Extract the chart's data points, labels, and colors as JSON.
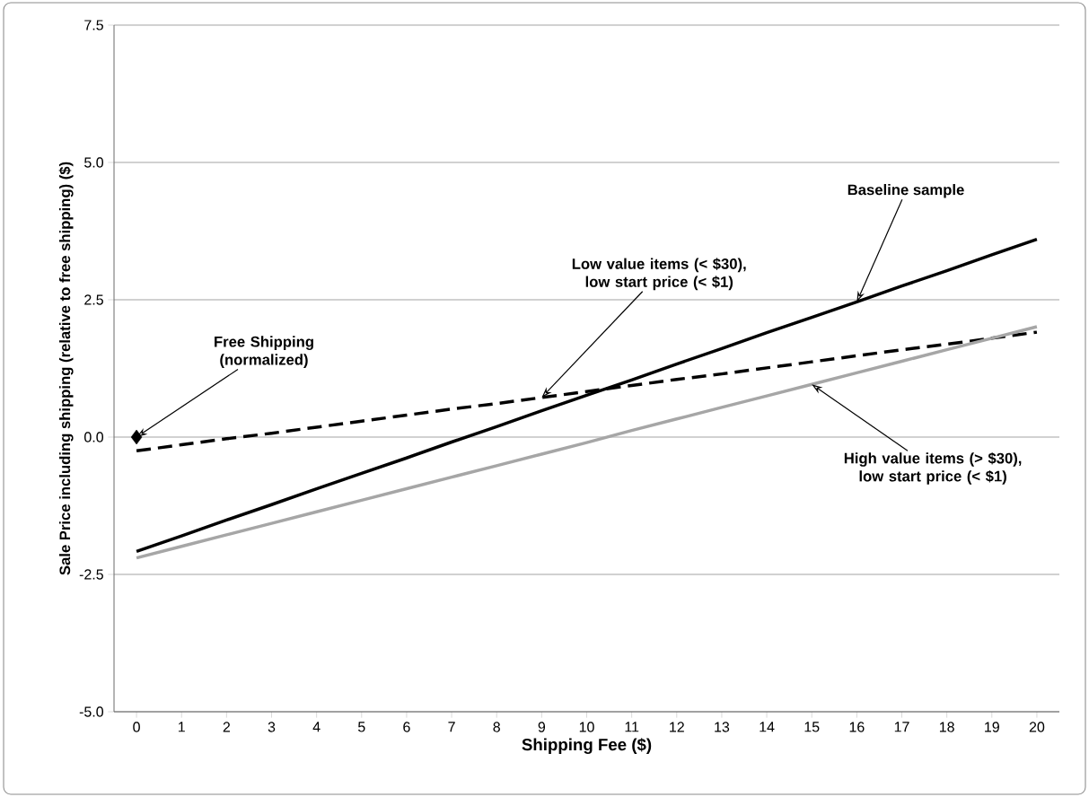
{
  "chart_data": {
    "type": "line",
    "xlabel": "Shipping Fee ($)",
    "ylabel": "Sale Price including shipping (relative to free shipping) ($)",
    "categories": [
      "0",
      "1",
      "2",
      "3",
      "4",
      "5",
      "6",
      "7",
      "8",
      "9",
      "10",
      "11",
      "12",
      "13",
      "14",
      "15",
      "16",
      "17",
      "18",
      "19",
      "20"
    ],
    "series": [
      {
        "color": "#000000",
        "values": [
          -2.08,
          -1.8,
          -1.51,
          -1.23,
          -0.94,
          -0.66,
          -0.38,
          -0.09,
          0.19,
          0.48,
          0.76,
          1.04,
          1.33,
          1.61,
          1.9,
          2.18,
          2.46,
          2.75,
          3.03,
          3.32,
          3.6
        ]
      },
      {
        "color": "#000000",
        "line_style": "dashed",
        "values": [
          -0.25,
          -0.14,
          -0.03,
          0.07,
          0.18,
          0.29,
          0.4,
          0.51,
          0.61,
          0.72,
          0.83,
          0.94,
          1.05,
          1.15,
          1.26,
          1.37,
          1.48,
          1.59,
          1.69,
          1.8,
          1.91
        ]
      },
      {
        "color": "#a6a6a6",
        "values": [
          -2.2,
          -1.99,
          -1.78,
          -1.57,
          -1.36,
          -1.15,
          -0.94,
          -0.73,
          -0.52,
          -0.31,
          -0.1,
          0.12,
          0.33,
          0.54,
          0.75,
          0.96,
          1.17,
          1.38,
          1.59,
          1.8,
          2.01
        ]
      },
      {
        "type": "scatter",
        "marker": "diamond",
        "color": "#000000",
        "values": [
          0,
          null,
          null,
          null,
          null,
          null,
          null,
          null,
          null,
          null,
          null,
          null,
          null,
          null,
          null,
          null,
          null,
          null,
          null,
          null,
          null
        ]
      }
    ],
    "ylim": [
      -5,
      7.5
    ],
    "yticks": [
      {
        "value": -5,
        "label": "-5.0"
      },
      {
        "value": -2.5,
        "label": "-2.5"
      },
      {
        "value": 0,
        "label": "0.0"
      },
      {
        "value": 2.5,
        "label": "2.5"
      },
      {
        "value": 5,
        "label": "5.0"
      },
      {
        "value": 7.5,
        "label": "7.5"
      }
    ],
    "grid": "y",
    "marker": "none",
    "line_style": "solid",
    "annotations": [
      {
        "text": "Free Shipping (normalized)",
        "x": "0",
        "y": 0
      },
      {
        "text": "Low value items (< $30), low start price (< $1)",
        "x": "9",
        "y": 0.72
      },
      {
        "text": "Baseline sample",
        "x": "16",
        "y": 2.46
      },
      {
        "text": "High value items (> $30), low start price (< $1)",
        "x": "15",
        "y": 0.96
      }
    ]
  }
}
